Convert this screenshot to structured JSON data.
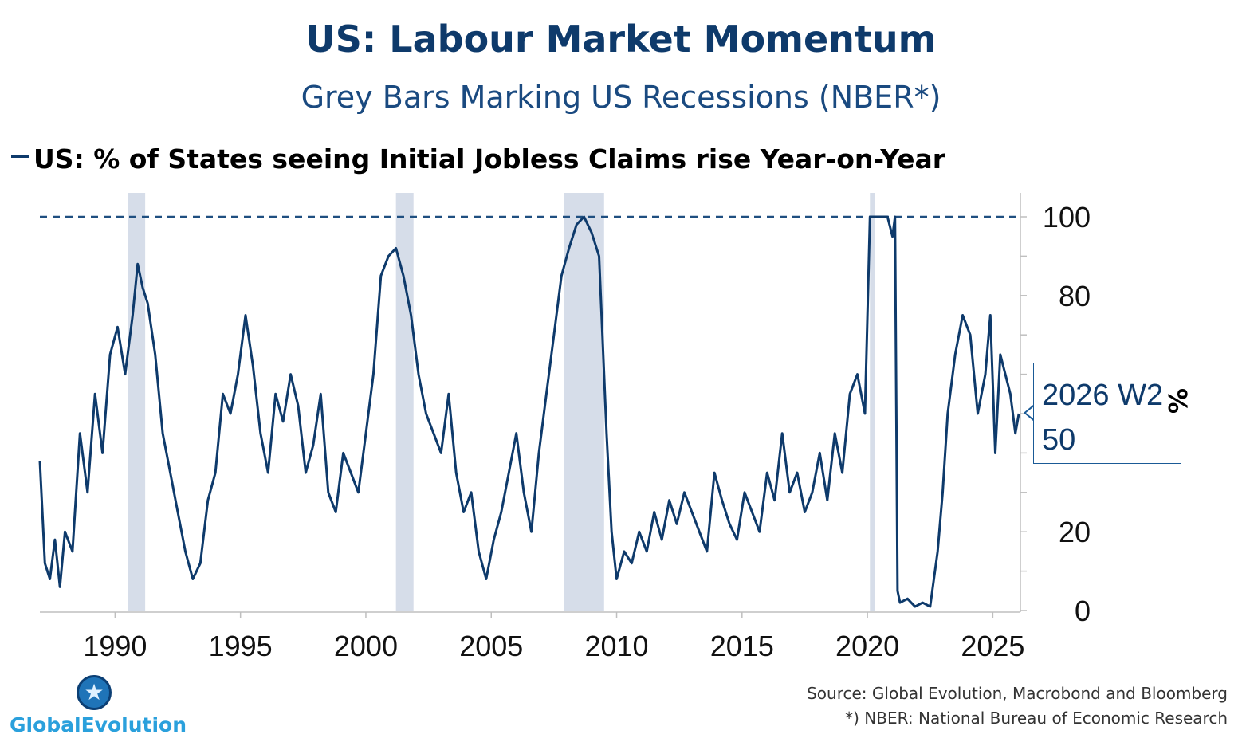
{
  "header": {
    "title": "US: Labour Market Momentum",
    "subtitle": "Grey Bars Marking US Recessions (NBER*)"
  },
  "legend": {
    "series_label": "US: % of States seeing Initial Jobless Claims rise Year-on-Year"
  },
  "axis": {
    "unit": "%"
  },
  "callout": {
    "line1": "2026 W2",
    "line2": "50"
  },
  "footer": {
    "source": "Source: Global Evolution, Macrobond and Bloomberg",
    "note": "*) NBER: National Bureau of Economic Research"
  },
  "logo": {
    "text": "GlobalEvolution",
    "icon": "star-icon"
  },
  "colors": {
    "line": "#0e3a6b",
    "recession": "#d6dde9",
    "title": "#0e3a6b",
    "reference": "#1f4f80"
  },
  "chart_data": {
    "type": "line",
    "title": "US: Labour Market Momentum",
    "subtitle": "Grey Bars Marking US Recessions (NBER*)",
    "ylabel": "%",
    "xlim": [
      1987,
      2026.1
    ],
    "ylim": [
      0,
      100
    ],
    "y_ticks": [
      0,
      20,
      80,
      100
    ],
    "y_minor_ticks": [
      10,
      30,
      40,
      50,
      60,
      70,
      90
    ],
    "x_ticks": [
      1990,
      1995,
      2000,
      2005,
      2010,
      2015,
      2020,
      2025
    ],
    "reference_line": 100,
    "legend_position": "top-left",
    "grid": false,
    "recessions": [
      [
        1990.5,
        1991.2
      ],
      [
        2001.2,
        2001.9
      ],
      [
        2007.9,
        2009.5
      ],
      [
        2020.1,
        2020.3
      ]
    ],
    "series": [
      {
        "name": "US: % of States seeing Initial Jobless Claims rise Year-on-Year",
        "x": [
          1987.0,
          1987.2,
          1987.4,
          1987.6,
          1987.8,
          1988.0,
          1988.3,
          1988.6,
          1988.9,
          1989.2,
          1989.5,
          1989.8,
          1990.1,
          1990.4,
          1990.7,
          1990.9,
          1991.1,
          1991.3,
          1991.6,
          1991.9,
          1992.2,
          1992.5,
          1992.8,
          1993.1,
          1993.4,
          1993.7,
          1994.0,
          1994.3,
          1994.6,
          1994.9,
          1995.2,
          1995.5,
          1995.8,
          1996.1,
          1996.4,
          1996.7,
          1997.0,
          1997.3,
          1997.6,
          1997.9,
          1998.2,
          1998.5,
          1998.8,
          1999.1,
          1999.4,
          1999.7,
          2000.0,
          2000.3,
          2000.6,
          2000.9,
          2001.2,
          2001.5,
          2001.8,
          2002.1,
          2002.4,
          2002.7,
          2003.0,
          2003.3,
          2003.6,
          2003.9,
          2004.2,
          2004.5,
          2004.8,
          2005.1,
          2005.4,
          2005.7,
          2006.0,
          2006.3,
          2006.6,
          2006.9,
          2007.2,
          2007.5,
          2007.8,
          2008.1,
          2008.4,
          2008.7,
          2009.0,
          2009.3,
          2009.6,
          2009.8,
          2010.0,
          2010.3,
          2010.6,
          2010.9,
          2011.2,
          2011.5,
          2011.8,
          2012.1,
          2012.4,
          2012.7,
          2013.0,
          2013.3,
          2013.6,
          2013.9,
          2014.2,
          2014.5,
          2014.8,
          2015.1,
          2015.4,
          2015.7,
          2016.0,
          2016.3,
          2016.6,
          2016.9,
          2017.2,
          2017.5,
          2017.8,
          2018.1,
          2018.4,
          2018.7,
          2019.0,
          2019.3,
          2019.6,
          2019.9,
          2020.1,
          2020.2,
          2020.5,
          2020.8,
          2021.0,
          2021.1,
          2021.2,
          2021.3,
          2021.6,
          2021.9,
          2022.2,
          2022.5,
          2022.8,
          2023.0,
          2023.2,
          2023.5,
          2023.8,
          2024.1,
          2024.4,
          2024.7,
          2024.9,
          2025.1,
          2025.3,
          2025.5,
          2025.7,
          2025.9,
          2026.04
        ],
        "values": [
          38,
          12,
          8,
          18,
          6,
          20,
          15,
          45,
          30,
          55,
          40,
          65,
          72,
          60,
          75,
          88,
          82,
          78,
          65,
          45,
          35,
          25,
          15,
          8,
          12,
          28,
          35,
          55,
          50,
          60,
          75,
          62,
          45,
          35,
          55,
          48,
          60,
          52,
          35,
          42,
          55,
          30,
          25,
          40,
          35,
          30,
          45,
          60,
          85,
          90,
          92,
          85,
          75,
          60,
          50,
          45,
          40,
          55,
          35,
          25,
          30,
          15,
          8,
          18,
          25,
          35,
          45,
          30,
          20,
          40,
          55,
          70,
          85,
          92,
          98,
          100,
          96,
          90,
          45,
          20,
          8,
          15,
          12,
          20,
          15,
          25,
          18,
          28,
          22,
          30,
          25,
          20,
          15,
          35,
          28,
          22,
          18,
          30,
          25,
          20,
          35,
          28,
          45,
          30,
          35,
          25,
          30,
          40,
          28,
          45,
          35,
          55,
          60,
          50,
          100,
          100,
          100,
          100,
          95,
          100,
          5,
          2,
          3,
          1,
          2,
          1,
          15,
          30,
          50,
          65,
          75,
          70,
          50,
          60,
          75,
          40,
          65,
          60,
          55,
          45,
          50
        ]
      }
    ]
  }
}
